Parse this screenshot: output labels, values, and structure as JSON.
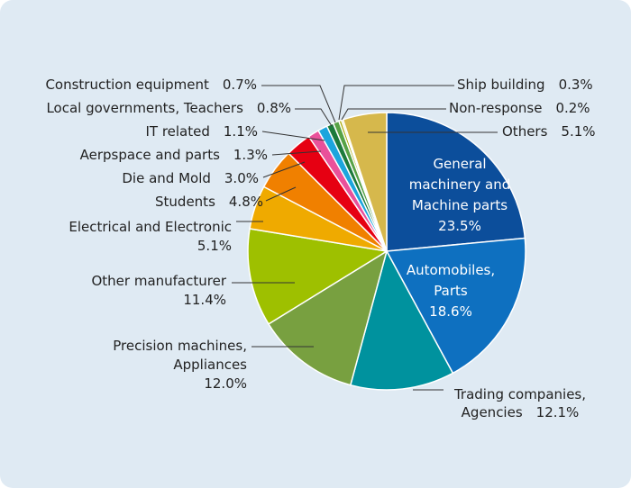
{
  "chart_data": {
    "type": "pie",
    "unit": "%",
    "start": "12 o'clock, clockwise",
    "slices": [
      {
        "label": "General machinery and Machine parts",
        "lines": [
          "General",
          "machinery and",
          "Machine parts",
          "23.5%"
        ],
        "value": 23.5,
        "color": "#0c4e9b"
      },
      {
        "label": "Automobiles, Parts",
        "lines": [
          "Automobiles,",
          "Parts",
          "18.6%"
        ],
        "value": 18.6,
        "color": "#0e70c0"
      },
      {
        "label": "Trading companies, Agencies",
        "lines": [
          "Trading companies,",
          "Agencies   12.1%"
        ],
        "value": 12.1,
        "color": "#00929e"
      },
      {
        "label": "Precision machines, Appliances",
        "lines": [
          "Precision machines,",
          "Appliances",
          "12.0%"
        ],
        "value": 12.0,
        "color": "#78a040"
      },
      {
        "label": "Other manufacturer",
        "lines": [
          "Other manufacturer",
          "11.4%"
        ],
        "value": 11.4,
        "color": "#9ec000"
      },
      {
        "label": "Electrical and Electronic",
        "lines": [
          "Electrical and Electronic",
          "5.1%"
        ],
        "value": 5.1,
        "color": "#efaa00"
      },
      {
        "label": "Students",
        "lines": [
          "Students   4.8%"
        ],
        "value": 4.8,
        "color": "#f08000"
      },
      {
        "label": "Die and Mold",
        "lines": [
          "Die and Mold   3.0%"
        ],
        "value": 3.0,
        "color": "#e60012"
      },
      {
        "label": "Aerpspace and parts",
        "lines": [
          "Aerpspace and parts   1.3%"
        ],
        "value": 1.3,
        "color": "#e9519a"
      },
      {
        "label": "IT related",
        "lines": [
          "IT related   1.1%"
        ],
        "value": 1.1,
        "color": "#1ca5dd"
      },
      {
        "label": "Local governments, Teachers",
        "lines": [
          "Local governments, Teachers   0.8%"
        ],
        "value": 0.8,
        "color": "#1c7a3c"
      },
      {
        "label": "Construction equipment",
        "lines": [
          "Construction equipment   0.7%"
        ],
        "value": 0.7,
        "color": "#57a246"
      },
      {
        "label": "Ship building",
        "lines": [
          "Ship building   0.3%"
        ],
        "value": 0.3,
        "color": "#a8a800"
      },
      {
        "label": "Non-response",
        "lines": [
          "Non-response   0.2%"
        ],
        "value": 0.2,
        "color": "#e8d070"
      },
      {
        "label": "Others",
        "lines": [
          "Others   5.1%"
        ],
        "value": 5.1,
        "color": "#d6b84c"
      }
    ]
  }
}
